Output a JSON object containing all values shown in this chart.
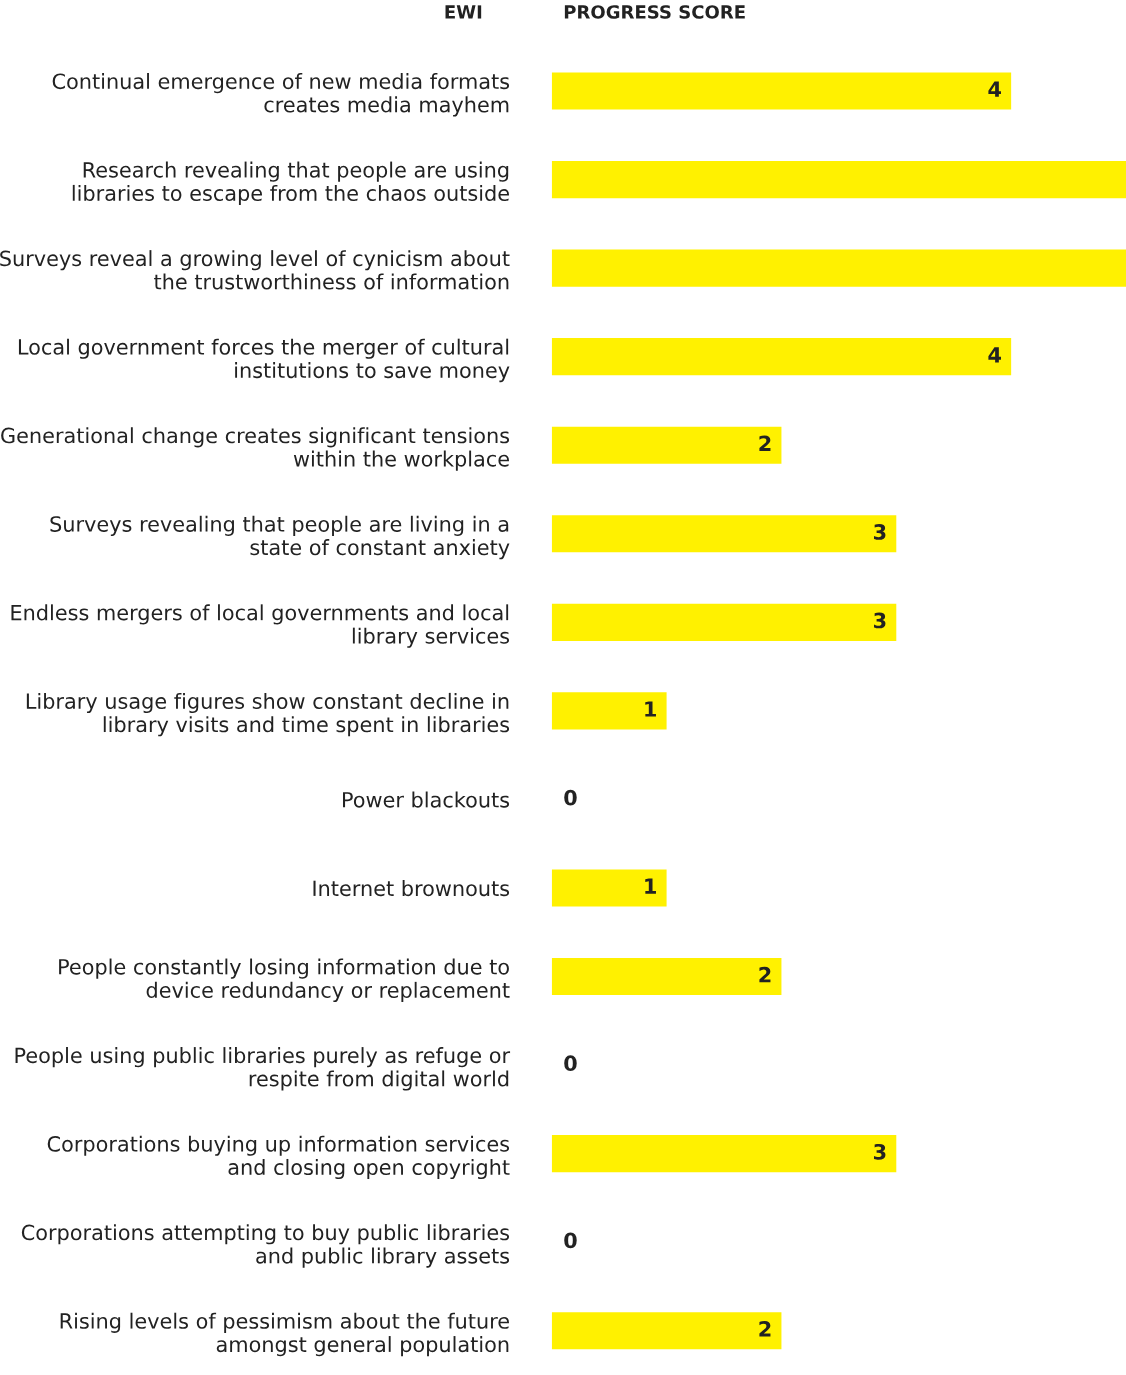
{
  "chart_data": {
    "type": "bar",
    "orientation": "horizontal",
    "ylabel": "EWI",
    "xlabel": "PROGRESS SCORE",
    "categories": [
      "Continual emergence of new media formats\ncreates media mayhem",
      "Research revealing that people are using\nlibraries to escape from the chaos outside",
      "Surveys reveal a growing level of cynicism about\nthe trustworthiness of information",
      "Local government forces the merger of cultural\ninstitutions to save money",
      "Generational change creates significant tensions\nwithin the workplace",
      "Surveys revealing that people are living in a\nstate of constant anxiety",
      "Endless mergers of local governments and local\nlibrary services",
      "Library usage figures show constant decline in\nlibrary visits and time spent in libraries",
      "Power blackouts",
      "Internet brownouts",
      "People constantly losing information due to\ndevice redundancy or replacement",
      "People using public libraries purely as refuge or\nrespite from digital world",
      "Corporations buying up information services\nand closing open copyright",
      "Corporations attempting to buy public libraries\nand public library assets",
      "Rising levels of pessimism about the future\namongst general population"
    ],
    "values": [
      4,
      5,
      5,
      4,
      2,
      3,
      3,
      1,
      0,
      1,
      2,
      0,
      3,
      0,
      2
    ],
    "value_labels": [
      "4",
      null,
      null,
      "4",
      "2",
      "3",
      "3",
      "1",
      "0",
      "1",
      "2",
      "0",
      "3",
      "0",
      "2"
    ],
    "color": "#fff100",
    "xlim": [
      0,
      5
    ],
    "tick_labels": "y",
    "grid": false,
    "legend": false
  }
}
